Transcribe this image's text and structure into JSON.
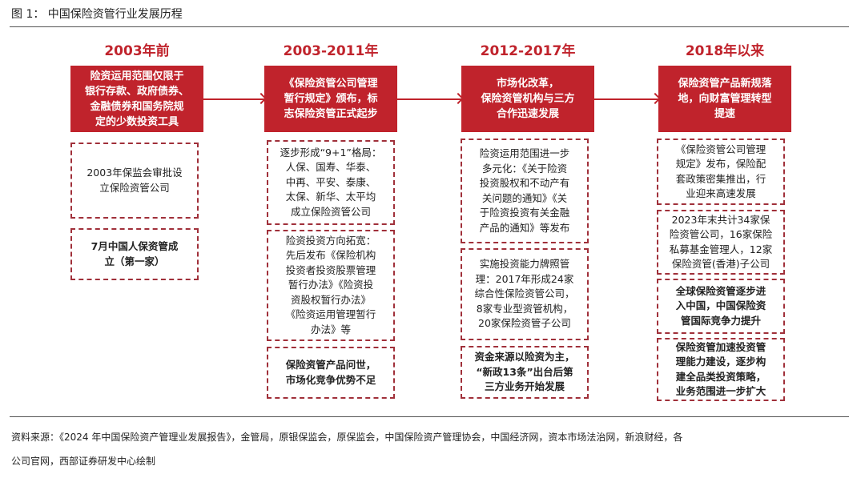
{
  "title": "图 1： 中国保险资管行业发展历程",
  "phases": [
    {
      "label": "2003年前",
      "headline": "险资运用范围仅限于\n银行存款、政府债券、\n金融债券和国务院规\n定的少数投资工具",
      "notes": [
        "2003年保监会审批设\n立保险资管公司",
        "7月中国人保资管成\n立（第一家）"
      ]
    },
    {
      "label": "2003-2011年",
      "headline": "《保险资管公司管理\n暂行规定》颁布，标\n志保险资管正式起步",
      "notes": [
        "逐步形成“9+1”格局：\n人保、国寿、华泰、\n中再、平安、泰康、\n太保、新华、太平均\n成立保险资管公司",
        "险资投资方向拓宽：\n先后发布《保险机构\n投资者投资股票管理\n暂行办法》《险资投\n资股权暂行办法》\n《险资运用管理暂行\n办法》等",
        "保险资管产品问世，\n市场化竞争优势不足"
      ]
    },
    {
      "label": "2012-2017年",
      "headline": "市场化改革，\n保险资管机构与三方\n合作迅速发展",
      "notes": [
        "险资运用范围进一步\n多元化：《关于险资\n投资股权和不动产有\n关问题的通知》《关\n于险资投资有关金融\n产品的通知》等发布",
        "实施投资能力牌照管\n理：2017年形成24家\n综合性保险资管公司，\n8家专业型资管机构，\n20家保险资管子公司",
        "资金来源以险资为主，\n“新政13条”出台后第\n三方业务开始发展"
      ]
    },
    {
      "label": "2018年以来",
      "headline": "保险资管产品新规落\n地，向财富管理转型\n提速",
      "notes": [
        "《保险资管公司管理\n规定》发布，保险配\n套政策密集推出，行\n业迎来高速发展",
        "2023年末共计34家保\n险资管公司，16家保险\n私募基金管理人，12家\n保险资管(香港)子公司",
        "全球保险资管逐步进\n入中国，中国保险资\n管国际竞争力提升",
        "保险资管加速投资管\n理能力建设，逐步构\n建全品类投资策略，\n业务范围进一步扩大"
      ]
    }
  ],
  "source": {
    "line1": "资料来源：《2024 年中国保险资产管理业发展报告》，金管局，原银保监会，原保监会，中国保险资产管理协会，中国经济网，资本市场法治网，新浪财经，各",
    "line2": "公司官网，西部证券研发中心绘制"
  },
  "colors": {
    "accent": "#c0232c",
    "dash": "#a0303a"
  }
}
